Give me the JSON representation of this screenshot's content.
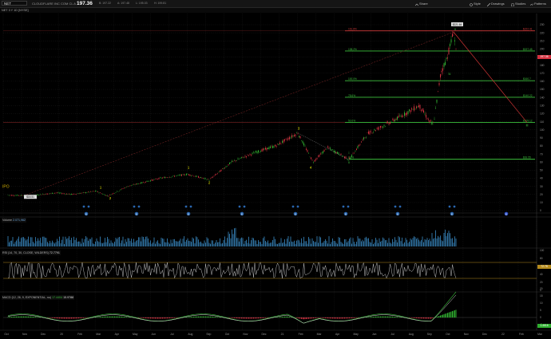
{
  "header": {
    "symbol": "NET",
    "company": "CLOUDFLARE INC COM CL A",
    "last_price": "197.36",
    "quote_items": [
      "B: 197.22",
      "A: 197.48",
      "L: 195.03",
      "H: 199.81"
    ],
    "buttons": [
      {
        "label": "Share",
        "icon": "share-icon"
      },
      {
        "label": "Style",
        "icon": "style-icon"
      },
      {
        "label": "Drawings",
        "icon": "pencil-icon"
      },
      {
        "label": "Studies",
        "icon": "flask-icon"
      },
      {
        "label": "Patterns",
        "icon": "pattern-icon"
      }
    ]
  },
  "study_label": "NET 3 Y 1D [NYSE]",
  "fib_levels": [
    {
      "label": "161.8%",
      "value": "$222.41",
      "price": 222.4
    },
    {
      "label": "138.2%",
      "value": "$197.45",
      "price": 197.45
    },
    {
      "label": "100.0%",
      "value": "$160.7",
      "price": 160.7
    },
    {
      "label": "78.6%",
      "value": "$140.22",
      "price": 140.22
    },
    {
      "label": "50.0%",
      "value": "$109.12",
      "price": 109.12
    },
    {
      "label": "0.0%",
      "value": "$63.55",
      "price": 63.55
    }
  ],
  "price_labels": {
    "high": "$221.64",
    "ipo_low": "$18.51",
    "ipo": "IPO"
  },
  "wave_labels": [
    "1",
    "2",
    "1",
    "2",
    "3",
    "4",
    "i",
    "ii",
    "iii",
    "iv",
    "v",
    "iii"
  ],
  "x_axis": [
    "Oct",
    "Nov",
    "Dec",
    "20",
    "Feb",
    "Mar",
    "Apr",
    "May",
    "Jun",
    "Jul",
    "Aug",
    "Sep",
    "Oct",
    "Nov",
    "Dec",
    "21",
    "Feb",
    "Mar",
    "Apr",
    "May",
    "Jun",
    "Jul",
    "Aug",
    "Sep",
    "Oct",
    "Nov",
    "Dec",
    "22",
    "Feb",
    "Mar"
  ],
  "price_axis": [
    "230",
    "220",
    "210",
    "200",
    "190",
    "180",
    "170",
    "160",
    "150",
    "140",
    "130",
    "120",
    "110",
    "100",
    "90",
    "80",
    "70",
    "60",
    "50",
    "40",
    "30",
    "20",
    "10",
    "0"
  ],
  "price_axis_tag": "197.36",
  "earnings_markers": [
    "E",
    "E",
    "E",
    "E",
    "E",
    "E",
    "E",
    "E",
    "E"
  ],
  "volume_panel": {
    "label": "Volume",
    "value": "2.071,962"
  },
  "rsi_panel": {
    "label": "RSI (14, 70, 30, CLOSE, WILDERS)",
    "value": "72.7791",
    "axis": [
      "100",
      "80",
      "60",
      "40",
      "20",
      "0"
    ],
    "tag": "72.78"
  },
  "macd_panel": {
    "label": "MACD (12, 26, 9, EXPONENTIAL, no)",
    "value": "17.4404",
    "value2": "15.9788",
    "tag": "1.4616",
    "axis": [
      "20",
      "15",
      "10",
      "5",
      "0",
      "-5"
    ]
  },
  "colors": {
    "up": "#2fae2f",
    "down": "#d3313f",
    "fib": "#3cbf3c",
    "fib_top": "#d33a3a",
    "background": "#000000"
  }
}
